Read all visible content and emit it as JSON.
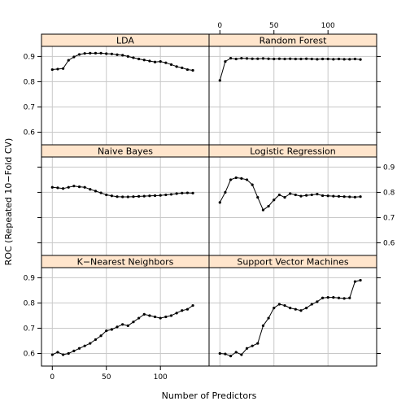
{
  "chart_data": {
    "type": "line",
    "xlabel": "Number of Predictors",
    "ylabel": "ROC (Repeated 10−Fold CV)",
    "xlim": [
      -10,
      145
    ],
    "ylim": [
      0.55,
      0.94
    ],
    "x_ticks": [
      0,
      50,
      100
    ],
    "y_ticks": [
      0.6,
      0.7,
      0.8,
      0.9
    ],
    "x_tick_labels": [
      "0",
      "50",
      "100"
    ],
    "y_tick_labels": [
      "0.6",
      "0.7",
      "0.8",
      "0.9"
    ],
    "grid": true,
    "panels": [
      {
        "name": "LDA",
        "x": [
          0,
          5,
          10,
          15,
          20,
          25,
          30,
          35,
          40,
          45,
          50,
          55,
          60,
          65,
          70,
          75,
          80,
          85,
          90,
          95,
          100,
          105,
          110,
          115,
          120,
          125,
          130
        ],
        "y": [
          0.848,
          0.85,
          0.852,
          0.885,
          0.898,
          0.908,
          0.912,
          0.913,
          0.913,
          0.913,
          0.911,
          0.91,
          0.907,
          0.905,
          0.9,
          0.895,
          0.89,
          0.886,
          0.882,
          0.878,
          0.88,
          0.875,
          0.868,
          0.86,
          0.855,
          0.848,
          0.845
        ]
      },
      {
        "name": "Random Forest",
        "x": [
          0,
          5,
          10,
          15,
          20,
          25,
          30,
          35,
          40,
          45,
          50,
          55,
          60,
          65,
          70,
          75,
          80,
          85,
          90,
          95,
          100,
          105,
          110,
          115,
          120,
          125,
          130
        ],
        "y": [
          0.805,
          0.88,
          0.893,
          0.89,
          0.893,
          0.892,
          0.891,
          0.891,
          0.892,
          0.891,
          0.89,
          0.891,
          0.89,
          0.891,
          0.89,
          0.89,
          0.891,
          0.89,
          0.889,
          0.89,
          0.89,
          0.889,
          0.89,
          0.889,
          0.889,
          0.89,
          0.888
        ]
      },
      {
        "name": "Naive Bayes",
        "x": [
          0,
          5,
          10,
          15,
          20,
          25,
          30,
          35,
          40,
          45,
          50,
          55,
          60,
          65,
          70,
          75,
          80,
          85,
          90,
          95,
          100,
          105,
          110,
          115,
          120,
          125,
          130
        ],
        "y": [
          0.82,
          0.818,
          0.815,
          0.82,
          0.825,
          0.822,
          0.82,
          0.812,
          0.805,
          0.798,
          0.79,
          0.786,
          0.783,
          0.782,
          0.782,
          0.783,
          0.784,
          0.785,
          0.786,
          0.787,
          0.788,
          0.79,
          0.792,
          0.795,
          0.797,
          0.798,
          0.797
        ]
      },
      {
        "name": "Logistic Regression",
        "x": [
          0,
          5,
          10,
          15,
          20,
          25,
          30,
          35,
          40,
          45,
          50,
          55,
          60,
          65,
          70,
          75,
          80,
          85,
          90,
          95,
          100,
          105,
          110,
          115,
          120,
          125,
          130
        ],
        "y": [
          0.76,
          0.8,
          0.85,
          0.858,
          0.855,
          0.85,
          0.83,
          0.78,
          0.73,
          0.745,
          0.77,
          0.79,
          0.78,
          0.795,
          0.79,
          0.785,
          0.788,
          0.79,
          0.793,
          0.787,
          0.786,
          0.785,
          0.784,
          0.783,
          0.782,
          0.781,
          0.783
        ]
      },
      {
        "name": "K−Nearest Neighbors",
        "x": [
          0,
          5,
          10,
          15,
          20,
          25,
          30,
          35,
          40,
          45,
          50,
          55,
          60,
          65,
          70,
          75,
          80,
          85,
          90,
          95,
          100,
          105,
          110,
          115,
          120,
          125,
          130
        ],
        "y": [
          0.595,
          0.605,
          0.595,
          0.6,
          0.61,
          0.62,
          0.63,
          0.64,
          0.655,
          0.67,
          0.69,
          0.695,
          0.705,
          0.715,
          0.71,
          0.725,
          0.74,
          0.755,
          0.75,
          0.745,
          0.74,
          0.745,
          0.75,
          0.76,
          0.77,
          0.775,
          0.79
        ]
      },
      {
        "name": "Support Vector Machines",
        "x": [
          0,
          5,
          10,
          15,
          20,
          25,
          30,
          35,
          40,
          45,
          50,
          55,
          60,
          65,
          70,
          75,
          80,
          85,
          90,
          95,
          100,
          105,
          110,
          115,
          120,
          125,
          130
        ],
        "y": [
          0.6,
          0.598,
          0.59,
          0.605,
          0.595,
          0.62,
          0.63,
          0.64,
          0.71,
          0.74,
          0.78,
          0.795,
          0.79,
          0.78,
          0.775,
          0.77,
          0.78,
          0.795,
          0.805,
          0.82,
          0.822,
          0.822,
          0.82,
          0.818,
          0.82,
          0.885,
          0.89
        ]
      }
    ]
  }
}
